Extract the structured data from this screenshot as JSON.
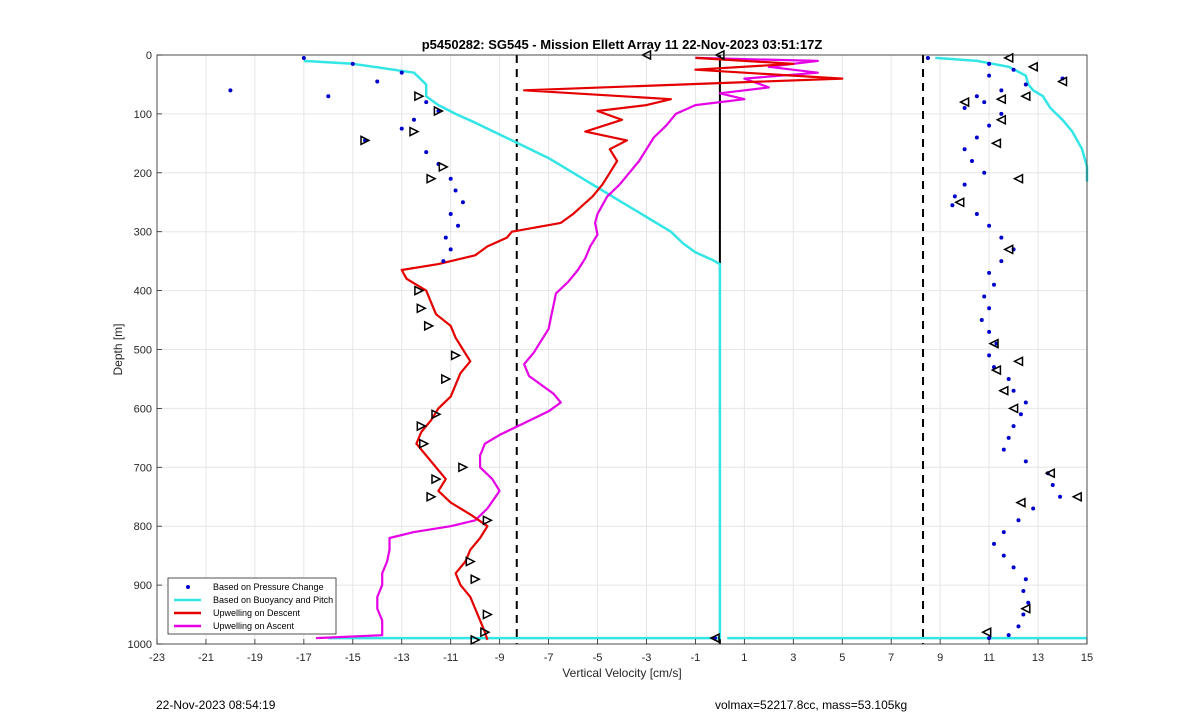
{
  "chart_data": {
    "type": "line",
    "title": "p5450282: SG545 - Mission Ellett Array 11 22-Nov-2023 03:51:17Z",
    "xlabel": "Vertical Velocity [cm/s]",
    "ylabel": "Depth [m]",
    "xlim": [
      -23,
      15
    ],
    "ylim": [
      0,
      1000
    ],
    "y_reversed": true,
    "xticks": [
      -23,
      -21,
      -19,
      -17,
      -15,
      -13,
      -11,
      -9,
      -7,
      -5,
      -3,
      -1,
      1,
      3,
      5,
      7,
      9,
      11,
      13,
      15
    ],
    "yticks": [
      0,
      100,
      200,
      300,
      400,
      500,
      600,
      700,
      800,
      900,
      1000
    ],
    "grid": true,
    "legend_position": "bottom-left",
    "reference_lines": [
      {
        "x": -8.3,
        "style": "dashed",
        "color": "#000000"
      },
      {
        "x": 0,
        "style": "solid",
        "color": "#000000"
      },
      {
        "x": 8.3,
        "style": "dashed",
        "color": "#000000"
      }
    ],
    "series": [
      {
        "name": "Based on Pressure Change",
        "color": "#0000cc",
        "style": "points",
        "descent": [
          [
            -17,
            5
          ],
          [
            -15,
            15
          ],
          [
            -13,
            30
          ],
          [
            -14,
            45
          ],
          [
            -20,
            60
          ],
          [
            -16,
            70
          ],
          [
            -12,
            80
          ],
          [
            -11.5,
            95
          ],
          [
            -12.5,
            110
          ],
          [
            -13,
            125
          ],
          [
            -14.5,
            145
          ],
          [
            -12,
            165
          ],
          [
            -11.5,
            185
          ],
          [
            -11,
            210
          ],
          [
            -10.8,
            230
          ],
          [
            -10.5,
            250
          ],
          [
            -11,
            270
          ],
          [
            -10.7,
            290
          ],
          [
            -11.2,
            310
          ],
          [
            -11,
            330
          ],
          [
            -11.3,
            350
          ],
          [
            -0.2,
            990
          ]
        ],
        "ascent": [
          [
            8.5,
            5
          ],
          [
            11,
            15
          ],
          [
            12,
            25
          ],
          [
            11,
            35
          ],
          [
            14,
            40
          ],
          [
            12.5,
            50
          ],
          [
            11.5,
            60
          ],
          [
            10.5,
            70
          ],
          [
            10.8,
            80
          ],
          [
            10,
            90
          ],
          [
            11.5,
            100
          ],
          [
            11,
            120
          ],
          [
            10.5,
            140
          ],
          [
            10,
            160
          ],
          [
            10.3,
            180
          ],
          [
            10.8,
            200
          ],
          [
            10,
            220
          ],
          [
            9.6,
            240
          ],
          [
            9.5,
            255
          ],
          [
            10.5,
            270
          ],
          [
            11,
            290
          ],
          [
            11.5,
            310
          ],
          [
            12,
            330
          ],
          [
            11.5,
            350
          ],
          [
            11,
            370
          ],
          [
            11.2,
            390
          ],
          [
            10.8,
            410
          ],
          [
            11,
            430
          ],
          [
            10.7,
            450
          ],
          [
            11,
            470
          ],
          [
            11.3,
            490
          ],
          [
            11,
            510
          ],
          [
            11.2,
            530
          ],
          [
            11.8,
            550
          ],
          [
            12,
            570
          ],
          [
            12.5,
            590
          ],
          [
            12.3,
            610
          ],
          [
            12,
            630
          ],
          [
            11.8,
            650
          ],
          [
            11.6,
            670
          ],
          [
            12.5,
            690
          ],
          [
            13.4,
            710
          ],
          [
            13.6,
            730
          ],
          [
            13.9,
            750
          ],
          [
            12.8,
            770
          ],
          [
            12.2,
            790
          ],
          [
            11.6,
            810
          ],
          [
            11.2,
            830
          ],
          [
            11.6,
            850
          ],
          [
            12,
            870
          ],
          [
            12.5,
            890
          ],
          [
            12.4,
            910
          ],
          [
            12.6,
            930
          ],
          [
            12.4,
            950
          ],
          [
            12.2,
            970
          ],
          [
            11.8,
            985
          ],
          [
            11,
            990
          ]
        ]
      },
      {
        "name": "Based on Buoyancy and Pitch",
        "color": "#33e5e5",
        "style": "line",
        "descent": [
          [
            -17,
            10
          ],
          [
            -15,
            15
          ],
          [
            -12.5,
            30
          ],
          [
            -12,
            50
          ],
          [
            -12,
            70
          ],
          [
            -11.5,
            85
          ],
          [
            -10.8,
            100
          ],
          [
            -10,
            115
          ],
          [
            -9,
            135
          ],
          [
            -8,
            155
          ],
          [
            -7,
            175
          ],
          [
            -6,
            200
          ],
          [
            -5,
            225
          ],
          [
            -4,
            250
          ],
          [
            -3,
            275
          ],
          [
            -2,
            300
          ],
          [
            -1.5,
            320
          ],
          [
            -1,
            335
          ],
          [
            -0.3,
            348
          ],
          [
            0,
            355
          ],
          [
            0,
            990
          ],
          [
            -16,
            990
          ]
        ],
        "ascent": [
          [
            15,
            990
          ],
          [
            0.3,
            990
          ]
        ],
        "ascent_upper": [
          [
            8.8,
            5
          ],
          [
            10.5,
            10
          ],
          [
            11.8,
            20
          ],
          [
            12.5,
            35
          ],
          [
            12.6,
            50
          ],
          [
            12.8,
            60
          ],
          [
            13.2,
            70
          ],
          [
            13.5,
            90
          ],
          [
            14,
            110
          ],
          [
            14.4,
            130
          ],
          [
            14.8,
            160
          ],
          [
            15,
            190
          ],
          [
            15,
            215
          ]
        ]
      },
      {
        "name": "Upwelling on Descent",
        "color": "#e50000",
        "style": "line",
        "points": [
          [
            -1,
            5
          ],
          [
            3,
            15
          ],
          [
            -1,
            25
          ],
          [
            5,
            40
          ],
          [
            -8,
            60
          ],
          [
            -2,
            75
          ],
          [
            -3,
            85
          ],
          [
            -5,
            95
          ],
          [
            -4,
            110
          ],
          [
            -5.5,
            130
          ],
          [
            -3.8,
            145
          ],
          [
            -4.5,
            160
          ],
          [
            -4.2,
            180
          ],
          [
            -4.5,
            200
          ],
          [
            -4.8,
            220
          ],
          [
            -5.2,
            240
          ],
          [
            -5.6,
            255
          ],
          [
            -6,
            270
          ],
          [
            -6.5,
            285
          ],
          [
            -8.5,
            300
          ],
          [
            -8.7,
            310
          ],
          [
            -9.5,
            325
          ],
          [
            -10,
            340
          ],
          [
            -11.5,
            355
          ],
          [
            -13,
            365
          ],
          [
            -12.8,
            380
          ],
          [
            -12,
            400
          ],
          [
            -11.8,
            420
          ],
          [
            -11.6,
            440
          ],
          [
            -11,
            460
          ],
          [
            -10.8,
            480
          ],
          [
            -10.5,
            500
          ],
          [
            -10.2,
            520
          ],
          [
            -10.6,
            540
          ],
          [
            -10.8,
            560
          ],
          [
            -11,
            580
          ],
          [
            -11.5,
            600
          ],
          [
            -11.8,
            620
          ],
          [
            -12.2,
            640
          ],
          [
            -12.4,
            660
          ],
          [
            -12,
            680
          ],
          [
            -11.6,
            700
          ],
          [
            -11.2,
            720
          ],
          [
            -11.5,
            740
          ],
          [
            -11,
            760
          ],
          [
            -10.2,
            780
          ],
          [
            -9.5,
            800
          ],
          [
            -9.8,
            820
          ],
          [
            -10.2,
            840
          ],
          [
            -10.4,
            860
          ],
          [
            -10.8,
            880
          ],
          [
            -10.6,
            900
          ],
          [
            -10.2,
            920
          ],
          [
            -10,
            940
          ],
          [
            -9.8,
            960
          ],
          [
            -9.6,
            980
          ],
          [
            -9.5,
            993
          ]
        ]
      },
      {
        "name": "Upwelling on Ascent",
        "color": "#e500e5",
        "style": "line",
        "points": [
          [
            -16.5,
            990
          ],
          [
            -13.8,
            985
          ],
          [
            -13.8,
            960
          ],
          [
            -14,
            940
          ],
          [
            -14,
            920
          ],
          [
            -13.8,
            900
          ],
          [
            -13.8,
            880
          ],
          [
            -13.6,
            860
          ],
          [
            -13.5,
            840
          ],
          [
            -13.5,
            820
          ],
          [
            -12.5,
            810
          ],
          [
            -11,
            800
          ],
          [
            -10,
            790
          ],
          [
            -9.5,
            770
          ],
          [
            -9,
            740
          ],
          [
            -9.3,
            720
          ],
          [
            -9.8,
            700
          ],
          [
            -9.8,
            680
          ],
          [
            -9.6,
            660
          ],
          [
            -9,
            645
          ],
          [
            -8,
            625
          ],
          [
            -7,
            605
          ],
          [
            -6.5,
            590
          ],
          [
            -6.8,
            575
          ],
          [
            -7.3,
            560
          ],
          [
            -7.8,
            545
          ],
          [
            -8,
            525
          ],
          [
            -7.6,
            505
          ],
          [
            -7.3,
            485
          ],
          [
            -7,
            465
          ],
          [
            -6.9,
            445
          ],
          [
            -6.8,
            425
          ],
          [
            -6.7,
            405
          ],
          [
            -6.2,
            385
          ],
          [
            -5.8,
            365
          ],
          [
            -5.5,
            345
          ],
          [
            -5.3,
            325
          ],
          [
            -5,
            305
          ],
          [
            -5.1,
            285
          ],
          [
            -5,
            270
          ],
          [
            -4.8,
            255
          ],
          [
            -4.6,
            240
          ],
          [
            -4.1,
            220
          ],
          [
            -3.7,
            200
          ],
          [
            -3.3,
            180
          ],
          [
            -3,
            160
          ],
          [
            -2.7,
            140
          ],
          [
            -2.2,
            120
          ],
          [
            -1.8,
            100
          ],
          [
            -1,
            85
          ],
          [
            1,
            75
          ],
          [
            0,
            65
          ],
          [
            2,
            55
          ],
          [
            1,
            40
          ],
          [
            4,
            30
          ],
          [
            2,
            20
          ],
          [
            4,
            10
          ],
          [
            -1,
            5
          ]
        ]
      }
    ],
    "markers": {
      "color": "#000000",
      "descent_triangles": [
        [
          -12.3,
          70
        ],
        [
          -11.5,
          95
        ],
        [
          -12.5,
          130
        ],
        [
          -14.5,
          145
        ],
        [
          -11.3,
          190
        ],
        [
          -11.8,
          210
        ],
        [
          -12.3,
          400
        ],
        [
          -12.2,
          430
        ],
        [
          -11.9,
          460
        ],
        [
          -10.8,
          510
        ],
        [
          -11.2,
          550
        ],
        [
          -11.6,
          610
        ],
        [
          -12.2,
          630
        ],
        [
          -12.1,
          660
        ],
        [
          -10.5,
          700
        ],
        [
          -11.6,
          720
        ],
        [
          -11.8,
          750
        ],
        [
          -9.5,
          790
        ],
        [
          -10.2,
          860
        ],
        [
          -10,
          890
        ],
        [
          -9.5,
          950
        ],
        [
          -9.6,
          980
        ],
        [
          -10,
          993
        ]
      ],
      "ascent_triangles": [
        [
          -3,
          0
        ],
        [
          0,
          0
        ],
        [
          11.8,
          5
        ],
        [
          12.8,
          20
        ],
        [
          14,
          45
        ],
        [
          12.5,
          70
        ],
        [
          11.5,
          75
        ],
        [
          10,
          80
        ],
        [
          11.5,
          110
        ],
        [
          11.3,
          150
        ],
        [
          12.2,
          210
        ],
        [
          9.8,
          250
        ],
        [
          11.8,
          330
        ],
        [
          11.2,
          490
        ],
        [
          12.2,
          520
        ],
        [
          11.3,
          535
        ],
        [
          11.6,
          570
        ],
        [
          12,
          600
        ],
        [
          13.5,
          710
        ],
        [
          14.6,
          750
        ],
        [
          12.3,
          760
        ],
        [
          12.5,
          940
        ],
        [
          10.9,
          980
        ],
        [
          -0.2,
          990
        ]
      ]
    }
  },
  "footer": {
    "timestamp": "22-Nov-2023 08:54:19",
    "info": "volmax=52217.8cc, mass=53.105kg"
  }
}
